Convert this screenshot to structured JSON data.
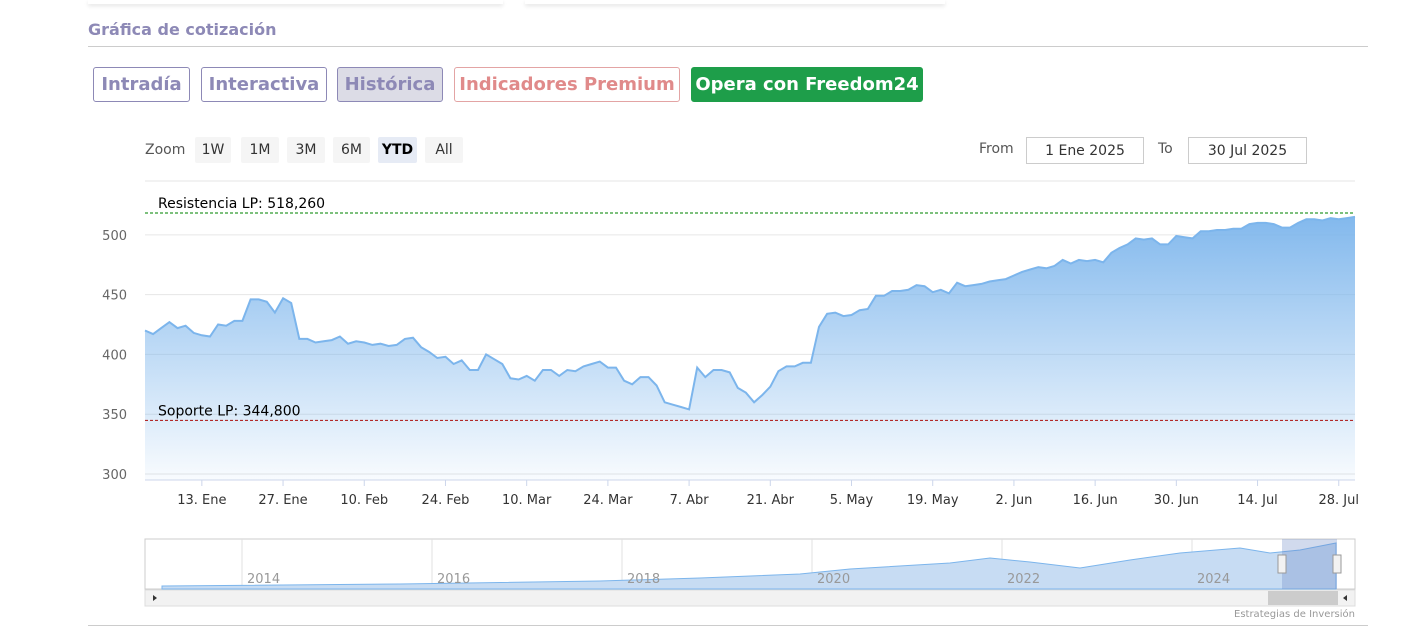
{
  "header": {
    "title": "Gráfica de cotización"
  },
  "tabs": [
    "Intradía",
    "Interactiva",
    "Histórica",
    "Indicadores Premium",
    "Opera con Freedom24"
  ],
  "zoom": {
    "label": "Zoom",
    "buttons": [
      "1W",
      "1M",
      "3M",
      "6M",
      "YTD",
      "All"
    ],
    "active": "YTD"
  },
  "range": {
    "from_label": "From",
    "from": "1 Ene 2025",
    "to_label": "To",
    "to": "30 Jul 2025"
  },
  "chart_data": {
    "type": "area",
    "categories": [
      null,
      null,
      null,
      null,
      null,
      null,
      null,
      "13. Ene",
      null,
      null,
      null,
      null,
      null,
      null,
      null,
      null,
      null,
      "27. Ene",
      null,
      null,
      null,
      null,
      null,
      null,
      null,
      null,
      null,
      "10. Feb",
      null,
      null,
      null,
      null,
      null,
      null,
      null,
      null,
      null,
      "24. Feb",
      null,
      null,
      null,
      null,
      null,
      null,
      null,
      null,
      null,
      "10. Mar",
      null,
      null,
      null,
      null,
      null,
      null,
      null,
      null,
      null,
      "24. Mar",
      null,
      null,
      null,
      null,
      null,
      null,
      null,
      null,
      null,
      "7. Abr",
      null,
      null,
      null,
      null,
      null,
      null,
      null,
      null,
      null,
      "21. Abr",
      null,
      null,
      null,
      null,
      null,
      null,
      null,
      null,
      null,
      "5. May",
      null,
      null,
      null,
      null,
      null,
      null,
      null,
      null,
      null,
      "19. May",
      null,
      null,
      null,
      null,
      null,
      null,
      null,
      null,
      null,
      "2. Jun",
      null,
      null,
      null,
      null,
      null,
      null,
      null,
      null,
      null,
      "16. Jun",
      null,
      null,
      null,
      null,
      null,
      null,
      null,
      null,
      null,
      "30. Jun",
      null,
      null,
      null,
      null,
      null,
      null,
      null,
      null,
      null,
      "14. Jul",
      null,
      null,
      null,
      null,
      null,
      null,
      null,
      null,
      null,
      "28. Jul",
      null,
      null
    ],
    "values": [
      420,
      417,
      422,
      427,
      422,
      424,
      418,
      416,
      415,
      425,
      424,
      428,
      428,
      446,
      446,
      444,
      435,
      447,
      443,
      413,
      413,
      410,
      411,
      412,
      415,
      409,
      411,
      410,
      408,
      409,
      407,
      408,
      413,
      414,
      406,
      402,
      397,
      398,
      392,
      395,
      387,
      387,
      400,
      396,
      392,
      380,
      379,
      382,
      378,
      387,
      387,
      382,
      387,
      386,
      390,
      392,
      394,
      389,
      389,
      378,
      375,
      381,
      381,
      374,
      360,
      358,
      356,
      354,
      389,
      381,
      387,
      387,
      385,
      372,
      368,
      360,
      366,
      373,
      386,
      390,
      390,
      393,
      393,
      423,
      434,
      435,
      432,
      433,
      437,
      438,
      449,
      449,
      453,
      453,
      454,
      458,
      457,
      452,
      454,
      451,
      460,
      457,
      458,
      459,
      461,
      462,
      463,
      466,
      469,
      471,
      473,
      472,
      474,
      479,
      476,
      479,
      478,
      479,
      477,
      485,
      489,
      492,
      497,
      496,
      497,
      492,
      492,
      499,
      498,
      497,
      503,
      503,
      504,
      504,
      505,
      505,
      509,
      510,
      510,
      509,
      506,
      506,
      510,
      513,
      513,
      512,
      514,
      513,
      514,
      515
    ],
    "color": "#7cb5ec",
    "ylim": [
      295,
      545
    ],
    "yticks": [
      300,
      350,
      400,
      450,
      500
    ],
    "grid": true,
    "annotations": [
      {
        "label": "Resistencia LP: 518,260",
        "value": 518.26,
        "color": "#2e9b2e"
      },
      {
        "label": "Soporte LP: 344,800",
        "value": 344.8,
        "color": "#b22a2a"
      }
    ]
  },
  "navigator": {
    "labels": [
      "2014",
      "2016",
      "2018",
      "2020",
      "2022",
      "2024"
    ]
  },
  "credit": "Estrategias de Inversión"
}
